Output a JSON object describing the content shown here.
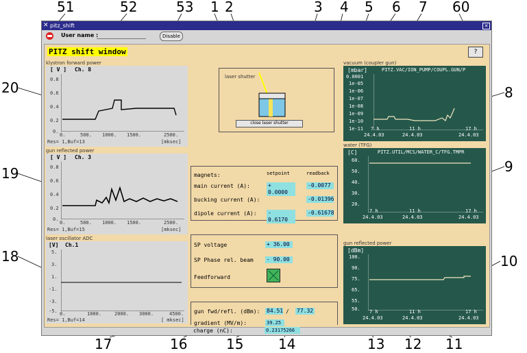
{
  "callouts": {
    "c51": "51",
    "c52": "52",
    "c53": "53",
    "c1": "1",
    "c2": "2",
    "c3": "3",
    "c4": "4",
    "c5": "5",
    "c6": "6",
    "c7": "7",
    "c60": "60",
    "c20": "20",
    "c19": "19",
    "c18": "18",
    "c8": "8",
    "c9": "9",
    "c10": "10",
    "c17": "17",
    "c16": "16",
    "c15": "15",
    "c14": "14",
    "c13": "13",
    "c12": "12",
    "c11": "11"
  },
  "window": {
    "title": "pitz_shift",
    "close": "✕"
  },
  "userbar": {
    "user_label": "User name :",
    "disable_label": "Disable"
  },
  "header": {
    "page_title": "PITZ shift window",
    "help_label": "?"
  },
  "plots_left": [
    {
      "caption": "klystron forward power",
      "unit": "[ V ]",
      "channel": "Ch. 8",
      "res": "Res= 1,Buf=13",
      "xunit": "[mksec]",
      "yticks": [
        "0.8",
        "0.6",
        "0.4",
        "0.2",
        "0."
      ],
      "xticks": [
        "0.",
        "500.",
        "1000.",
        "1500.",
        "2500."
      ]
    },
    {
      "caption": "gun reflected power",
      "unit": "[ V ]",
      "channel": "Ch. 3",
      "res": "Res= 1,Buf=15",
      "xunit": "[mksec]",
      "yticks": [
        "0.8",
        "0.6",
        "0.4",
        "0.2",
        "0."
      ],
      "xticks": [
        "0.",
        "500.",
        "1000.",
        "1500.",
        "2500."
      ]
    },
    {
      "caption": "laser oscillator ADC",
      "unit": "[V]",
      "channel": "Ch.1",
      "res": "Res= 1,Buf=14",
      "xunit": "[ mksec]",
      "yticks": [
        "5.",
        "3.",
        "1.",
        "-1.",
        "-3.",
        "-5."
      ],
      "xticks": [
        "0.",
        "1000.",
        "2000.",
        "3000.",
        "4500."
      ]
    }
  ],
  "shutter": {
    "caption": "laser shutter",
    "button": "close laser shutter"
  },
  "magnets": {
    "header": "magnets:",
    "setpoint": "setpoint",
    "readback": "readback",
    "rows": [
      {
        "label": "main current (A):",
        "set": "+ 0.0000",
        "read": "-0.0077"
      },
      {
        "label": "bucking current (A):",
        "set": "",
        "read": "-0.01396"
      },
      {
        "label": "dipole current (A):",
        "set": "- 0.6170",
        "read": "-0.61678"
      }
    ]
  },
  "sp": {
    "voltage_label": "SP voltage",
    "voltage": "+ 36.00",
    "phase_label": "SP Phase rel. beam",
    "phase": "- 90.00",
    "ff_label": "Feedforward"
  },
  "gun": {
    "fwd_label": "gun fwd/refl. (dBm):",
    "fwd": "84.51",
    "sep": "/",
    "refl": "77.32",
    "grad_label": "gradient (MV/m):",
    "grad": "39.25",
    "charge_label": "charge (nC):",
    "charge": "0.23175266"
  },
  "plots_right": [
    {
      "caption": "vacuum (coupler gun)",
      "unit": "[mbar]",
      "channel": "PITZ.VAC/ION_PUMP/COUPL.GUN/P",
      "yticks": [
        "0.0001",
        "1e-05",
        "1e-06",
        "1e-07",
        "1e-08",
        "1e-09",
        "1e-10",
        "1e-11"
      ],
      "xticks": [
        "7 h",
        "11 h",
        "17 h"
      ],
      "dates": [
        "24.4.03",
        "24.4.03",
        "24.4.03"
      ]
    },
    {
      "caption": "water (TFG)",
      "unit": "[C]",
      "channel": "PITZ.UTIL/MCS/WATER_C/TFG.TMPR",
      "yticks": [
        "60.",
        "50.",
        "40.",
        "30.",
        "20."
      ],
      "xticks": [
        "7 h",
        "11 h",
        "17 h"
      ],
      "dates": [
        "24.4.03",
        "24.4.03",
        "24.4.03"
      ]
    },
    {
      "caption": "gun reflected power",
      "unit": "[dBm]",
      "channel": "",
      "yticks": [
        "100.",
        "90.",
        "75.",
        "65.",
        "55.",
        "50."
      ],
      "xticks": [
        "7 h",
        "11 h",
        "17 h"
      ],
      "dates": [
        "24.4.03",
        "24.4.03",
        "24.4.03"
      ]
    }
  ],
  "colors": {
    "main_bg": "#f2d9a8",
    "plot_green": "#25584a",
    "value_cyan": "#8fe0e0",
    "title_highlight": "#ffff00"
  }
}
